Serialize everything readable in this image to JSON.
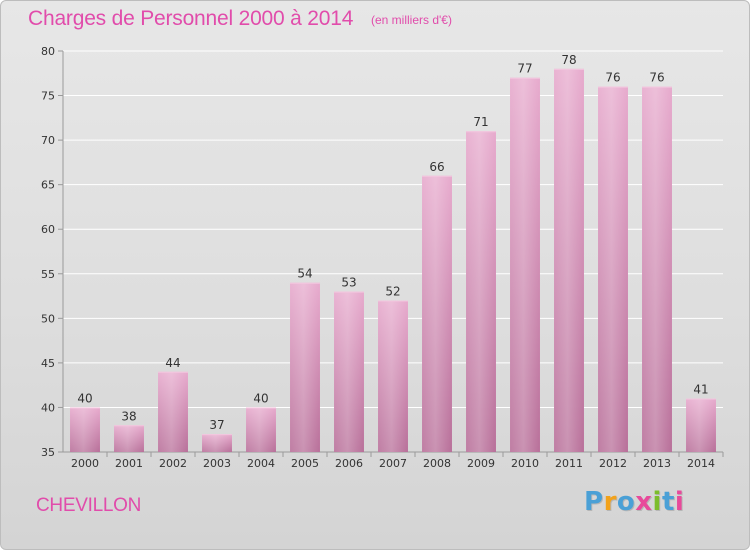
{
  "chart_data": {
    "type": "bar",
    "title": "Charges de Personnel 2000 à 2014",
    "subtitle": "(en milliers d'€)",
    "categories": [
      "2000",
      "2001",
      "2002",
      "2003",
      "2004",
      "2005",
      "2006",
      "2007",
      "2008",
      "2009",
      "2010",
      "2011",
      "2012",
      "2013",
      "2014"
    ],
    "values": [
      40,
      38,
      44,
      37,
      40,
      54,
      53,
      52,
      66,
      71,
      77,
      78,
      76,
      76,
      41
    ],
    "ylim": [
      35,
      80
    ],
    "yticks": [
      35,
      40,
      45,
      50,
      55,
      60,
      65,
      70,
      75,
      80
    ],
    "grid": true,
    "xlabel": "",
    "ylabel": "",
    "colors": {
      "bar": "#cf79ab",
      "bar_light": "#e8a9cc",
      "grid": "#ffffff",
      "title": "#e14cab"
    }
  },
  "footer": {
    "city": "CHEVILLON",
    "logo_letters": [
      "P",
      "r",
      "o",
      "x",
      "i",
      "t",
      "i"
    ],
    "logo_colors": [
      "#4aa0d6",
      "#f2a21b",
      "#4aa0d6",
      "#e84a9b",
      "#7cbd2c",
      "#4aa0d6",
      "#e84a9b"
    ]
  }
}
